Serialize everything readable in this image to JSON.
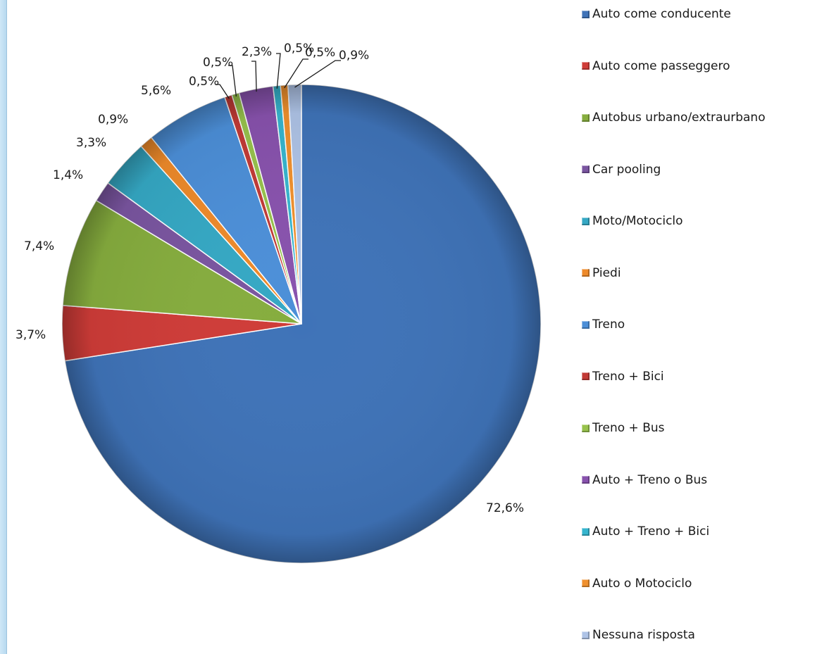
{
  "chart_data": {
    "type": "pie",
    "title": "",
    "categories": [
      "Auto come conducente",
      "Auto come passeggero",
      "Autobus urbano/extraurbano",
      "Car pooling",
      "Moto/Motociclo",
      "Piedi",
      "Treno",
      "Treno + Bici",
      "Treno + Bus",
      "Auto + Treno o Bus",
      "Auto + Treno + Bici",
      "Auto o Motociclo",
      "Nessuna risposta"
    ],
    "values": [
      72.6,
      3.7,
      7.4,
      1.4,
      3.3,
      0.9,
      5.6,
      0.5,
      0.5,
      2.3,
      0.5,
      0.5,
      0.9
    ],
    "data_labels": [
      "72,6%",
      "3,7%",
      "7,4%",
      "1,4%",
      "3,3%",
      "0,9%",
      "5,6%",
      "0,5%",
      "0,5%",
      "2,3%",
      "0,5%",
      "0,5%",
      "0,9%"
    ],
    "colors": [
      "#3f73b8",
      "#cf3c38",
      "#86ad3e",
      "#7a55a0",
      "#35a8c4",
      "#ee8a2a",
      "#4c8fd8",
      "#c23a36",
      "#97c24c",
      "#8852ad",
      "#36b5ce",
      "#f0902d",
      "#aec3e6"
    ],
    "legend_position": "right",
    "start_angle_deg": 0,
    "direction": "clockwise"
  }
}
